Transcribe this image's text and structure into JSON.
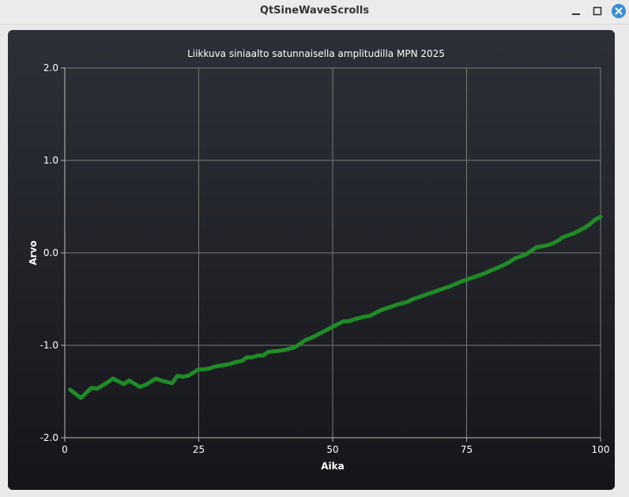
{
  "window": {
    "title": "QtSineWaveScrolls",
    "controls": [
      "minimize-icon",
      "maximize-icon",
      "close-icon"
    ]
  },
  "colors": {
    "panel_top": "#2d3038",
    "panel_bottom": "#15161a",
    "grid": "#7a7a7a",
    "line": "#1f8c26",
    "text": "#ffffff",
    "close_button": "#3a8fd1"
  },
  "chart_data": {
    "type": "line",
    "title": "Liikkuva siniaalto satunnaisella amplitudilla MPN 2025",
    "xlabel": "Aika",
    "ylabel": "Arvo",
    "xlim": [
      0,
      100
    ],
    "ylim": [
      -2.0,
      2.0
    ],
    "xticks": [
      0,
      25,
      50,
      75,
      100
    ],
    "xtick_labels": [
      "0",
      "25",
      "50",
      "75",
      "100"
    ],
    "yticks": [
      -2.0,
      -1.0,
      0.0,
      1.0,
      2.0
    ],
    "ytick_labels": [
      "-2.0",
      "-1.0",
      "0.0",
      "1.0",
      "2.0"
    ],
    "grid": true,
    "legend": "none",
    "series": [
      {
        "color": "#1f8c26",
        "x": [
          1,
          3,
          5,
          6,
          8,
          9,
          11,
          12,
          14,
          15,
          17,
          18,
          20,
          21,
          22,
          23,
          25,
          26,
          27,
          28,
          30,
          31,
          32,
          33,
          34,
          35,
          36,
          37,
          38,
          40,
          41,
          43,
          44,
          45,
          46,
          47,
          48,
          49,
          50,
          51,
          52,
          53,
          54,
          56,
          57,
          58,
          59,
          60,
          61,
          62,
          64,
          65,
          66,
          68,
          70,
          72,
          74,
          76,
          78,
          80,
          82,
          83,
          84,
          86,
          87,
          88,
          90,
          91,
          92,
          93,
          95,
          96,
          97,
          98,
          99,
          100
        ],
        "y": [
          -1.48,
          -1.57,
          -1.46,
          -1.47,
          -1.4,
          -1.36,
          -1.42,
          -1.38,
          -1.45,
          -1.43,
          -1.36,
          -1.38,
          -1.41,
          -1.33,
          -1.34,
          -1.33,
          -1.26,
          -1.26,
          -1.25,
          -1.23,
          -1.21,
          -1.2,
          -1.18,
          -1.17,
          -1.13,
          -1.13,
          -1.11,
          -1.11,
          -1.07,
          -1.06,
          -1.05,
          -1.02,
          -0.98,
          -0.94,
          -0.92,
          -0.89,
          -0.86,
          -0.83,
          -0.8,
          -0.77,
          -0.74,
          -0.74,
          -0.72,
          -0.69,
          -0.68,
          -0.65,
          -0.62,
          -0.6,
          -0.58,
          -0.56,
          -0.53,
          -0.5,
          -0.48,
          -0.44,
          -0.4,
          -0.36,
          -0.31,
          -0.27,
          -0.23,
          -0.18,
          -0.13,
          -0.1,
          -0.06,
          -0.02,
          0.02,
          0.06,
          0.08,
          0.1,
          0.13,
          0.17,
          0.21,
          0.24,
          0.27,
          0.31,
          0.36,
          0.39
        ]
      }
    ]
  }
}
